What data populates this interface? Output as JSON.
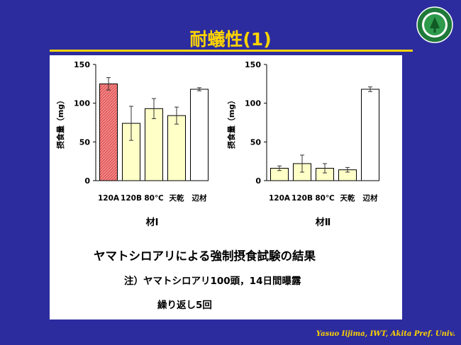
{
  "slide": {
    "title": "耐蟻性(1)",
    "caption_main": "ヤマトシロアリによる強制摂食試験の結果",
    "caption_note": "注）ヤマトシロアリ100頭，14日間曝露",
    "caption_repeat": "繰り返し5回",
    "footer": "Yasuo Iijima, IWT, Akita Pref.  Univ.",
    "logo_text_top": "AKITA PREFECTURAL",
    "logo_text_bottom": "Akita Prefectural University",
    "colors": {
      "background": "#2c2c9e",
      "accent": "#ffd400",
      "panel": "#ffffff"
    }
  },
  "chart_data": [
    {
      "type": "bar",
      "title": "",
      "xlabel": "材Ⅰ",
      "ylabel": "摂食量（mg）",
      "ylim": [
        0,
        150
      ],
      "yticks": [
        0,
        50,
        100,
        150
      ],
      "categories": [
        "120A",
        "120B",
        "80℃",
        "天乾",
        "辺材"
      ],
      "values": [
        125,
        74,
        93,
        84,
        118
      ],
      "errors": [
        8,
        22,
        13,
        11,
        2
      ],
      "bar_colors": [
        "#f08080",
        "#ffffc8",
        "#ffffc8",
        "#ffffc8",
        "#ffffff"
      ],
      "bar_patterns": [
        "hatch",
        "solid",
        "solid",
        "solid",
        "solid"
      ],
      "grid": false
    },
    {
      "type": "bar",
      "title": "",
      "xlabel": "材Ⅱ",
      "ylabel": "摂食量（mg）",
      "ylim": [
        0,
        150
      ],
      "yticks": [
        0,
        50,
        100,
        150
      ],
      "categories": [
        "120A",
        "120B",
        "80℃",
        "天乾",
        "辺材"
      ],
      "values": [
        16,
        22,
        16,
        14,
        118
      ],
      "errors": [
        3,
        11,
        6,
        3,
        3
      ],
      "bar_colors": [
        "#ffffc8",
        "#ffffc8",
        "#ffffc8",
        "#ffffc8",
        "#ffffff"
      ],
      "bar_patterns": [
        "solid",
        "solid",
        "solid",
        "solid",
        "solid"
      ],
      "grid": false
    }
  ]
}
